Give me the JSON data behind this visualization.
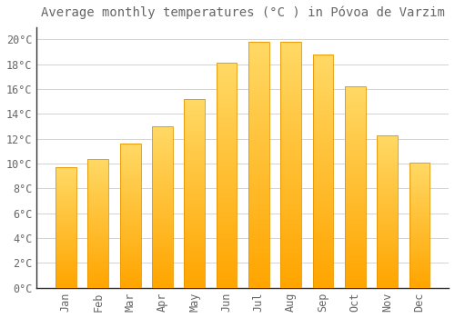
{
  "title": "Average monthly temperatures (°C ) in Póvoa de Varzim",
  "months": [
    "Jan",
    "Feb",
    "Mar",
    "Apr",
    "May",
    "Jun",
    "Jul",
    "Aug",
    "Sep",
    "Oct",
    "Nov",
    "Dec"
  ],
  "values": [
    9.7,
    10.4,
    11.6,
    13.0,
    15.2,
    18.1,
    19.8,
    19.8,
    18.8,
    16.2,
    12.3,
    10.1
  ],
  "bar_color_top": "#FFD966",
  "bar_color_bottom": "#FFA500",
  "bar_edge_color": "#E89400",
  "background_color": "#FFFFFF",
  "plot_bg_color": "#FFFFFF",
  "grid_color": "#CCCCCC",
  "text_color": "#666666",
  "spine_color": "#333333",
  "ylim": [
    0,
    21
  ],
  "yticks": [
    0,
    2,
    4,
    6,
    8,
    10,
    12,
    14,
    16,
    18,
    20
  ],
  "title_fontsize": 10,
  "tick_fontsize": 8.5,
  "bar_width": 0.65
}
